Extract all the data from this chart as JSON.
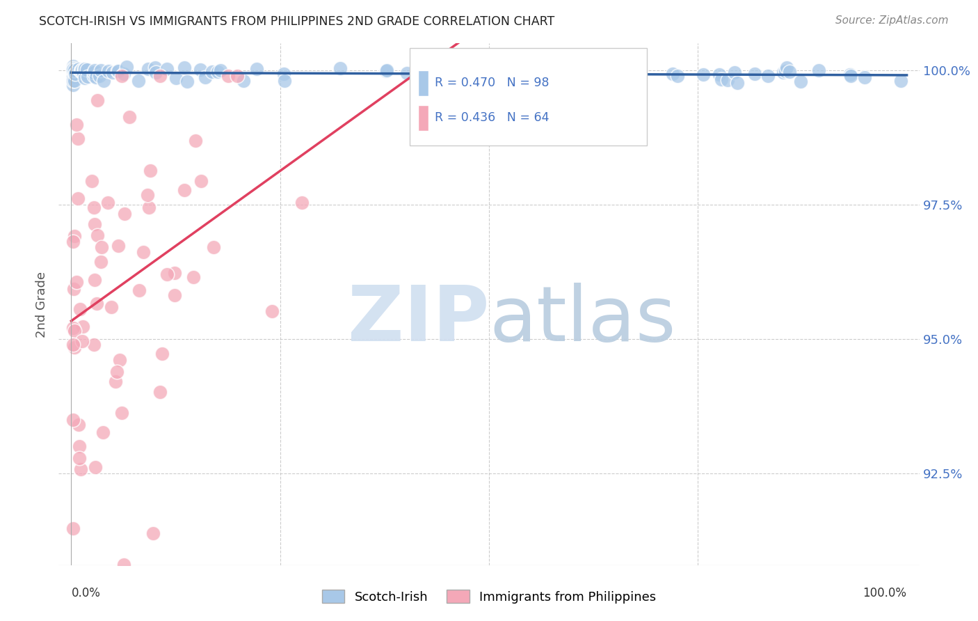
{
  "title": "SCOTCH-IRISH VS IMMIGRANTS FROM PHILIPPINES 2ND GRADE CORRELATION CHART",
  "source": "Source: ZipAtlas.com",
  "ylabel": "2nd Grade",
  "ytick_labels": [
    "100.0%",
    "97.5%",
    "95.0%",
    "92.5%"
  ],
  "ytick_values": [
    1.0,
    0.975,
    0.95,
    0.925
  ],
  "legend_blue_label": "Scotch-Irish",
  "legend_pink_label": "Immigrants from Philippines",
  "R_blue": 0.47,
  "N_blue": 98,
  "R_pink": 0.436,
  "N_pink": 64,
  "blue_color": "#a8c8e8",
  "pink_color": "#f4a8b8",
  "blue_line_color": "#3060a0",
  "pink_line_color": "#e04060",
  "xlim": [
    0.0,
    1.0
  ],
  "ylim": [
    0.908,
    1.005
  ],
  "grid_color": "#cccccc",
  "tick_label_color": "#4472c4",
  "ylabel_color": "#555555",
  "title_color": "#222222",
  "source_color": "#888888",
  "watermark_zip_color": "#d0dff0",
  "watermark_atlas_color": "#b8ccdf"
}
